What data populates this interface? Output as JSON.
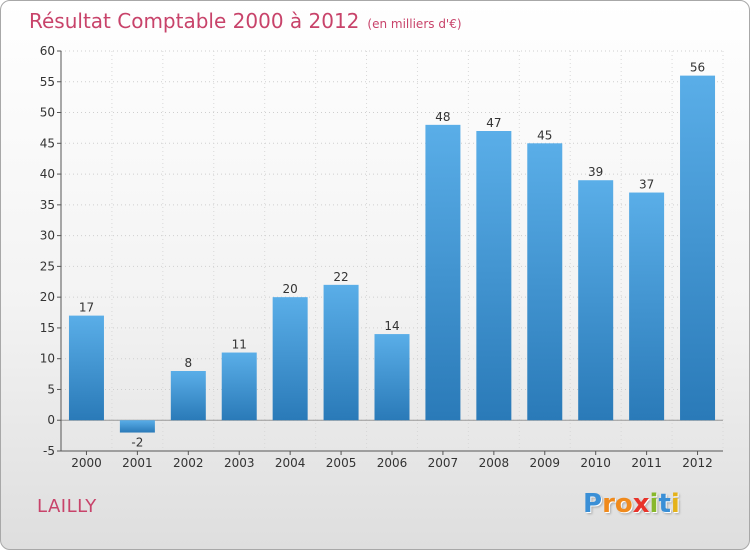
{
  "header": {
    "title": "Résultat Comptable 2000 à 2012",
    "unit": "(en milliers d'€)"
  },
  "footer": {
    "place": "LAILLY",
    "brand": "Proxiti",
    "brand_letters": [
      {
        "ch": "P",
        "color": "#3a8fd6"
      },
      {
        "ch": "r",
        "color": "#f08a1c"
      },
      {
        "ch": "o",
        "color": "#f08a1c"
      },
      {
        "ch": "x",
        "color": "#e8332a"
      },
      {
        "ch": "i",
        "color": "#88b82c"
      },
      {
        "ch": "t",
        "color": "#3a8fd6"
      },
      {
        "ch": "i",
        "color": "#e4b21a"
      }
    ]
  },
  "colors": {
    "title": "#c8436a",
    "bar_light": "#5aaee8",
    "bar_dark": "#2a7ab8",
    "axis": "#555555"
  },
  "chart_data": {
    "type": "bar",
    "title": "Résultat Comptable 2000 à 2012",
    "ylabel": "en milliers d'€",
    "categories": [
      "2000",
      "2001",
      "2002",
      "2003",
      "2004",
      "2005",
      "2006",
      "2007",
      "2008",
      "2009",
      "2010",
      "2011",
      "2012"
    ],
    "values": [
      17,
      -2,
      8,
      11,
      20,
      22,
      14,
      48,
      47,
      45,
      39,
      37,
      56
    ],
    "ylim": [
      -5,
      60
    ],
    "yticks": [
      -5,
      0,
      5,
      10,
      15,
      20,
      25,
      30,
      35,
      40,
      45,
      50,
      55,
      60
    ],
    "grid": true
  }
}
